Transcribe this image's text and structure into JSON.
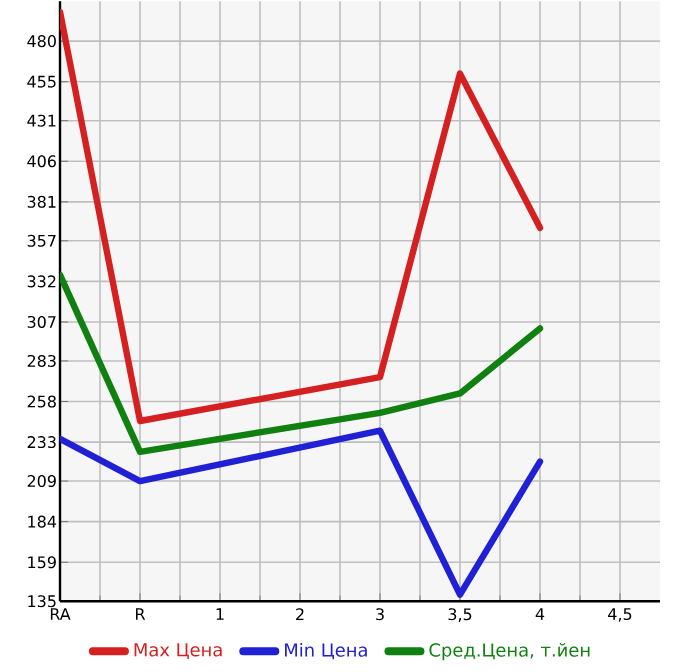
{
  "chart_data": {
    "type": "line",
    "categories": [
      "RA",
      "R",
      "1",
      "2",
      "3",
      "3,5",
      "4",
      "4,5"
    ],
    "series": [
      {
        "name": "Max Цена",
        "color": "#d42020",
        "values": [
          498,
          246,
          null,
          null,
          273,
          460,
          365,
          null
        ]
      },
      {
        "name": "Min Цена",
        "color": "#2020d4",
        "values": [
          235,
          209,
          null,
          null,
          240,
          139,
          221,
          null
        ]
      },
      {
        "name": "Сред.Цена, т.йен",
        "color": "#108010",
        "values": [
          336,
          227,
          null,
          null,
          251,
          263,
          303,
          null
        ]
      }
    ],
    "ylim": [
      135,
      504.6
    ],
    "yticks": [
      135,
      159,
      184,
      209,
      233,
      258,
      283,
      307,
      332,
      357,
      381,
      406,
      431,
      455,
      480
    ],
    "grid": true,
    "legend": "bottom",
    "marker": "none",
    "line_style": "solid"
  }
}
